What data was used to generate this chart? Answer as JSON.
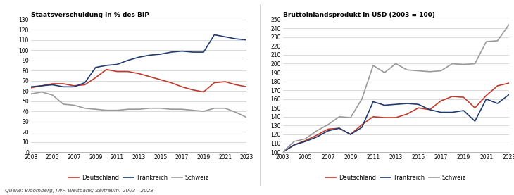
{
  "years": [
    2003,
    2004,
    2005,
    2006,
    2007,
    2008,
    2009,
    2010,
    2011,
    2012,
    2013,
    2014,
    2015,
    2016,
    2017,
    2018,
    2019,
    2020,
    2021,
    2022,
    2023
  ],
  "debt_deutschland": [
    63,
    65,
    67,
    67,
    65,
    66,
    73,
    81,
    79,
    79,
    77,
    74,
    71,
    68,
    64,
    61,
    59,
    68,
    69,
    66,
    64
  ],
  "debt_frankreich": [
    64,
    65,
    66,
    64,
    64,
    68,
    83,
    85,
    86,
    90,
    93,
    95,
    96,
    98,
    99,
    98,
    98,
    115,
    113,
    111,
    110
  ],
  "debt_schweiz": [
    57,
    59,
    56,
    47,
    46,
    43,
    42,
    41,
    41,
    42,
    42,
    43,
    43,
    42,
    42,
    41,
    40,
    43,
    43,
    39,
    34
  ],
  "gdp_deutschland": [
    100,
    108,
    113,
    119,
    126,
    127,
    120,
    131,
    140,
    139,
    139,
    143,
    150,
    148,
    158,
    163,
    162,
    150,
    164,
    175,
    178
  ],
  "gdp_frankreich": [
    100,
    108,
    112,
    117,
    124,
    127,
    120,
    128,
    157,
    153,
    154,
    155,
    154,
    148,
    145,
    145,
    147,
    135,
    160,
    155,
    165
  ],
  "gdp_schweiz": [
    100,
    112,
    115,
    124,
    131,
    140,
    139,
    160,
    198,
    190,
    200,
    193,
    192,
    191,
    192,
    200,
    199,
    200,
    225,
    226,
    244
  ],
  "color_deutschland": "#c0392b",
  "color_frankreich": "#1f3a6e",
  "color_schweiz": "#999999",
  "title_left": "Staatsverschuldung in % des BIP",
  "title_right": "Bruttoinlandsprodukt in USD (2003 = 100)",
  "ylim_left": [
    0,
    130
  ],
  "ylim_right": [
    100,
    250
  ],
  "yticks_left": [
    0,
    10,
    20,
    30,
    40,
    50,
    60,
    70,
    80,
    90,
    100,
    110,
    120,
    130
  ],
  "yticks_right": [
    100,
    110,
    120,
    130,
    140,
    150,
    160,
    170,
    180,
    190,
    200,
    210,
    220,
    230,
    240,
    250
  ],
  "xticks": [
    2003,
    2005,
    2007,
    2009,
    2011,
    2013,
    2015,
    2017,
    2019,
    2021,
    2023
  ],
  "source_text": "Quelle: Bloomberg, IWF, Weltbank; Zeitraum: 2003 - 2023",
  "legend_labels": [
    "Deutschland",
    "Frankreich",
    "Schweiz"
  ]
}
